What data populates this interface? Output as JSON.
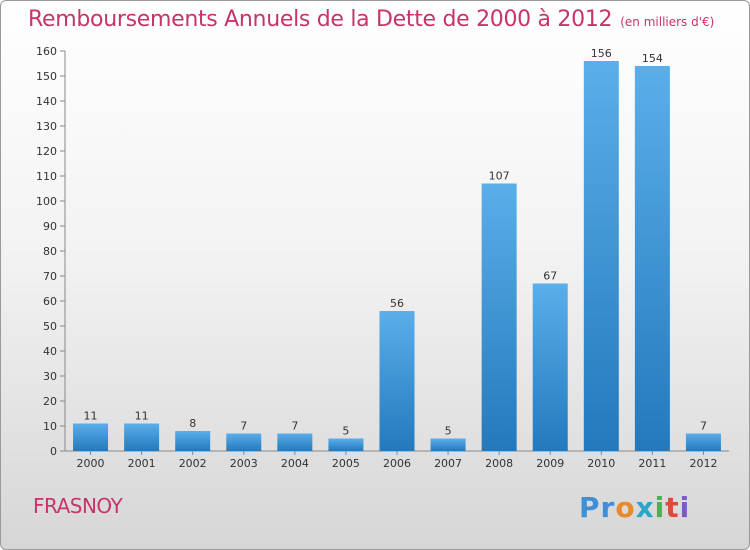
{
  "header": {
    "title": "Remboursements Annuels de la Dette de 2000 à 2012",
    "subtitle": "(en milliers d'€)"
  },
  "footer": {
    "commune": "FRASNOY",
    "logo": {
      "p1": "Pr",
      "p2": "o",
      "p3": "x",
      "p4": "i",
      "p5": "t",
      "p6": "i"
    }
  },
  "colors": {
    "title": "#c8336b",
    "bar_light": "#5aaeea",
    "bar_dark": "#2479bd"
  },
  "chart_data": {
    "type": "bar",
    "title": "Remboursements Annuels de la Dette de 2000 à 2012",
    "subtitle": "(en milliers d'€)",
    "categories": [
      "2000",
      "2001",
      "2002",
      "2003",
      "2004",
      "2005",
      "2006",
      "2007",
      "2008",
      "2009",
      "2010",
      "2011",
      "2012"
    ],
    "values": [
      11,
      11,
      8,
      7,
      7,
      5,
      56,
      5,
      107,
      67,
      156,
      154,
      7
    ],
    "ylim": [
      0,
      160
    ],
    "yticks": [
      0,
      10,
      20,
      30,
      40,
      50,
      60,
      70,
      80,
      90,
      100,
      110,
      120,
      130,
      140,
      150,
      160
    ],
    "grid": false,
    "data_labels": true
  }
}
